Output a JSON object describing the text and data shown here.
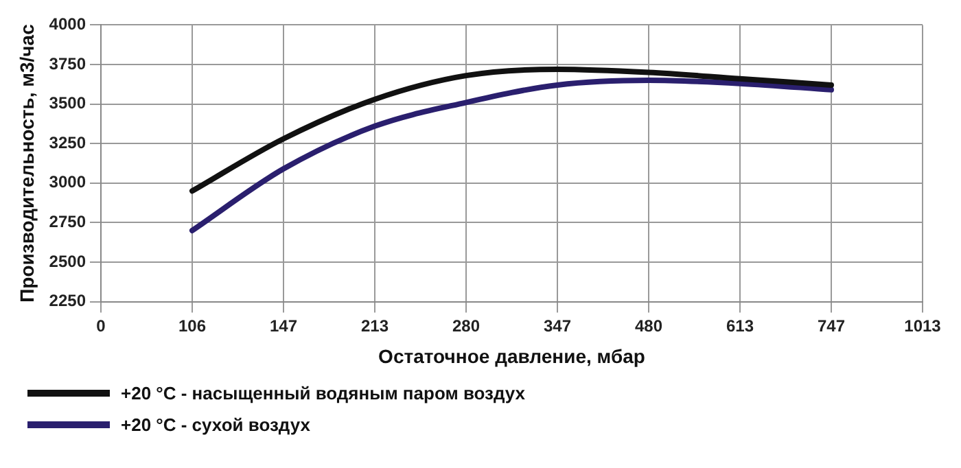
{
  "chart_data": {
    "type": "line",
    "xlabel": "Остаточное давление, мбар",
    "ylabel": "Производительность, м3/час",
    "categories": [
      "0",
      "106",
      "147",
      "213",
      "280",
      "347",
      "480",
      "613",
      "747",
      "1013"
    ],
    "series": [
      {
        "name": "+20 °C - насыщенный водяным паром воздух",
        "color": "#111111",
        "values": [
          null,
          2950,
          3280,
          3530,
          3680,
          3720,
          3700,
          3660,
          3620,
          null
        ]
      },
      {
        "name": "+20 °C - сухой воздух",
        "color": "#2a1f6e",
        "values": [
          null,
          2700,
          3090,
          3360,
          3510,
          3620,
          3650,
          3630,
          3590,
          null
        ]
      }
    ],
    "ylim": [
      2250,
      4000
    ],
    "yticks": [
      2250,
      2500,
      2750,
      3000,
      3250,
      3500,
      3750,
      4000
    ],
    "grid": true,
    "legend": "bottom left",
    "marker": "none",
    "line_style": "solid"
  }
}
